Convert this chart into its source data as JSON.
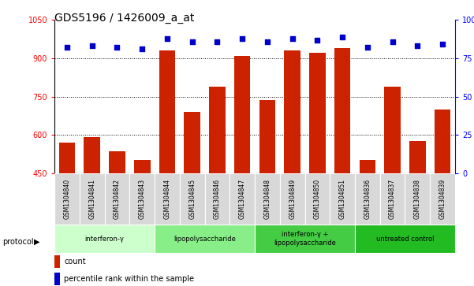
{
  "title": "GDS5196 / 1426009_a_at",
  "samples": [
    "GSM1304840",
    "GSM1304841",
    "GSM1304842",
    "GSM1304843",
    "GSM1304844",
    "GSM1304845",
    "GSM1304846",
    "GSM1304847",
    "GSM1304848",
    "GSM1304849",
    "GSM1304850",
    "GSM1304851",
    "GSM1304836",
    "GSM1304837",
    "GSM1304838",
    "GSM1304839"
  ],
  "counts": [
    570,
    590,
    535,
    500,
    930,
    690,
    790,
    910,
    735,
    930,
    920,
    940,
    500,
    790,
    575,
    700
  ],
  "percentiles": [
    82,
    83,
    82,
    81,
    88,
    86,
    86,
    88,
    86,
    88,
    87,
    89,
    82,
    86,
    83,
    84
  ],
  "groups": [
    {
      "label": "interferon-γ",
      "start": 0,
      "end": 4,
      "color": "#ccffcc"
    },
    {
      "label": "lipopolysaccharide",
      "start": 4,
      "end": 8,
      "color": "#88ee88"
    },
    {
      "label": "interferon-γ +\nlipopolysaccharide",
      "start": 8,
      "end": 12,
      "color": "#44cc44"
    },
    {
      "label": "untreated control",
      "start": 12,
      "end": 16,
      "color": "#22bb22"
    }
  ],
  "ylim_left": [
    450,
    1050
  ],
  "ylim_right": [
    0,
    100
  ],
  "yticks_left": [
    450,
    600,
    750,
    900,
    1050
  ],
  "yticks_right": [
    0,
    25,
    50,
    75,
    100
  ],
  "bar_color": "#cc2200",
  "scatter_color": "#0000cc",
  "background_color": "#ffffff",
  "title_fontsize": 10,
  "tick_fontsize": 7,
  "label_fontsize": 7
}
